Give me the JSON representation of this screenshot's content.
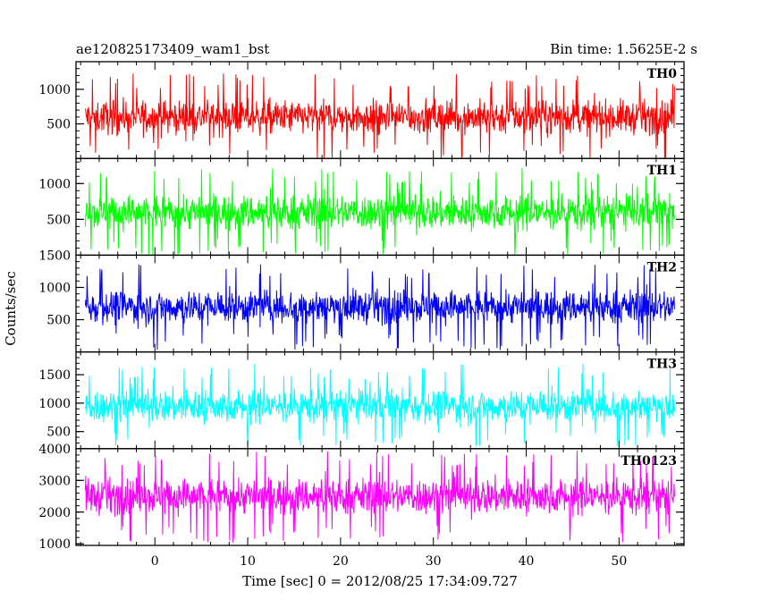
{
  "chart_data": {
    "type": "line",
    "title_left": "ae120825173409_wam1_bst",
    "title_right": "Bin time: 1.5625E-2 s",
    "xlabel": "Time [sec] 0 = 2012/08/25 17:34:09.727",
    "ylabel": "Counts/sec",
    "xlim": [
      -8.5,
      57
    ],
    "x_range": [
      -7.5,
      56
    ],
    "x_ticks": [
      0,
      10,
      20,
      30,
      40,
      50
    ],
    "panels": [
      {
        "name": "TH0",
        "color": "#ff0000",
        "ylim": [
          0,
          1400
        ],
        "y_ticks": [
          500,
          1000
        ],
        "mean": 600,
        "spread": 300,
        "min": 10,
        "max": 1400
      },
      {
        "name": "TH1",
        "color": "#00ff00",
        "ylim": [
          0,
          1350
        ],
        "y_ticks": [
          500,
          1000
        ],
        "mean": 600,
        "spread": 300,
        "min": 10,
        "max": 1350
      },
      {
        "name": "TH2",
        "color": "#0000ff",
        "ylim": [
          0,
          1500
        ],
        "y_ticks": [
          500,
          1000,
          1500
        ],
        "mean": 700,
        "spread": 320,
        "min": 10,
        "max": 1500
      },
      {
        "name": "TH3",
        "color": "#00ffff",
        "ylim": [
          200,
          1900
        ],
        "y_ticks": [
          500,
          1000,
          1500
        ],
        "mean": 950,
        "spread": 360,
        "min": 250,
        "max": 1900
      },
      {
        "name": "TH0123",
        "color": "#ff00ff",
        "ylim": [
          950,
          4000
        ],
        "y_ticks": [
          1000,
          2000,
          3000,
          4000
        ],
        "mean": 2500,
        "spread": 700,
        "min": 1000,
        "max": 4000
      }
    ]
  }
}
